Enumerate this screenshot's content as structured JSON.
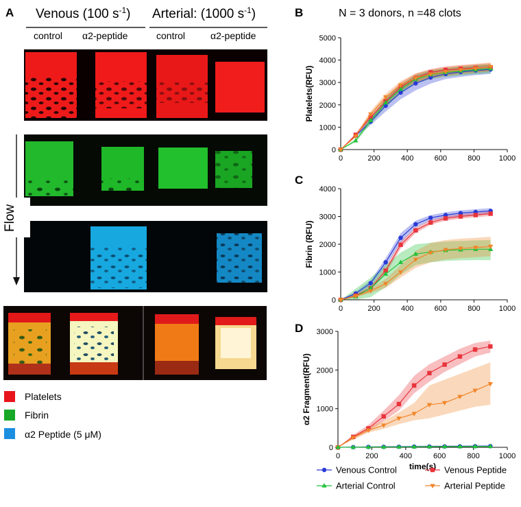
{
  "left": {
    "panel_label": "A",
    "venous_title_prefix": "Venous (100 s",
    "venous_title_sup": "-1",
    "venous_title_suffix": ")",
    "arterial_title_prefix": "Arterial: (1000 s",
    "arterial_title_sup": "-1",
    "arterial_title_suffix": ")",
    "columns": [
      "control",
      "α2-peptide",
      "control",
      "α2-peptide"
    ],
    "flow_label": "Flow",
    "legend": [
      {
        "label": "Platelets",
        "color": "#e8141c"
      },
      {
        "label": "Fibrin",
        "color": "#17a827"
      },
      {
        "label": "α2 Peptide (5 μM)",
        "color": "#1c8fe0"
      }
    ]
  },
  "header": {
    "panel_label": "B",
    "annotation": "N = 3 donors, n =48 clots"
  },
  "colors": {
    "venous_control": "#2a3bd6",
    "venous_peptide": "#e8343c",
    "arterial_control": "#23c23a",
    "arterial_peptide": "#f0862a"
  },
  "legend": {
    "items": [
      {
        "label": "Venous Control",
        "series": "venous_control",
        "marker": "circle"
      },
      {
        "label": "Venous Peptide",
        "series": "venous_peptide",
        "marker": "square"
      },
      {
        "label": "Arterial Control",
        "series": "arterial_control",
        "marker": "triangle-up"
      },
      {
        "label": "Arterial Peptide",
        "series": "arterial_peptide",
        "marker": "triangle-down"
      }
    ]
  },
  "chart_data": [
    {
      "panel": "B",
      "type": "line",
      "title": "",
      "xlabel": "",
      "ylabel": "Platelets(RFU)",
      "xlim": [
        0,
        1000
      ],
      "ylim": [
        0,
        5000
      ],
      "xticks": [
        0,
        200,
        400,
        600,
        800,
        1000
      ],
      "yticks": [
        0,
        1000,
        2000,
        3000,
        4000,
        5000
      ],
      "x": [
        0,
        90,
        180,
        270,
        360,
        450,
        540,
        630,
        720,
        810,
        900
      ],
      "series": [
        {
          "name": "Venous Control",
          "key": "venous_control",
          "values": [
            0,
            620,
            1250,
            1960,
            2550,
            2960,
            3220,
            3380,
            3470,
            3540,
            3580
          ],
          "band": [
            [
              0,
              0
            ],
            [
              560,
              680
            ],
            [
              1100,
              1400
            ],
            [
              1700,
              2250
            ],
            [
              2250,
              2900
            ],
            [
              2650,
              3300
            ],
            [
              2950,
              3500
            ],
            [
              3150,
              3600
            ],
            [
              3250,
              3680
            ],
            [
              3330,
              3740
            ],
            [
              3380,
              3790
            ]
          ]
        },
        {
          "name": "Venous Peptide",
          "key": "venous_peptide",
          "values": [
            0,
            660,
            1450,
            2150,
            2800,
            3200,
            3450,
            3560,
            3610,
            3650,
            3680
          ],
          "band": [
            [
              0,
              0
            ],
            [
              600,
              720
            ],
            [
              1300,
              1600
            ],
            [
              1950,
              2350
            ],
            [
              2600,
              3000
            ],
            [
              3000,
              3400
            ],
            [
              3250,
              3600
            ],
            [
              3350,
              3720
            ],
            [
              3420,
              3780
            ],
            [
              3460,
              3820
            ],
            [
              3500,
              3860
            ]
          ]
        },
        {
          "name": "Arterial Control",
          "key": "arterial_control",
          "values": [
            0,
            400,
            1300,
            2100,
            2700,
            3150,
            3350,
            3450,
            3520,
            3570,
            3620
          ],
          "band": [
            [
              0,
              0
            ],
            [
              330,
              470
            ],
            [
              1150,
              1450
            ],
            [
              1900,
              2300
            ],
            [
              2500,
              2900
            ],
            [
              2950,
              3350
            ],
            [
              3150,
              3550
            ],
            [
              3250,
              3650
            ],
            [
              3320,
              3720
            ],
            [
              3370,
              3770
            ],
            [
              3420,
              3820
            ]
          ]
        },
        {
          "name": "Arterial Peptide",
          "key": "arterial_peptide",
          "values": [
            0,
            600,
            1580,
            2350,
            2880,
            3200,
            3370,
            3480,
            3560,
            3630,
            3700
          ],
          "band": [
            [
              0,
              0
            ],
            [
              540,
              660
            ],
            [
              1450,
              1720
            ],
            [
              2200,
              2500
            ],
            [
              2700,
              3060
            ],
            [
              3000,
              3400
            ],
            [
              3170,
              3570
            ],
            [
              3280,
              3680
            ],
            [
              3360,
              3760
            ],
            [
              3430,
              3830
            ],
            [
              3500,
              3900
            ]
          ]
        }
      ]
    },
    {
      "panel": "C",
      "type": "line",
      "title": "",
      "xlabel": "",
      "ylabel": "Fibrin (RFU)",
      "xlim": [
        0,
        1000
      ],
      "ylim": [
        0,
        4000
      ],
      "xticks": [
        0,
        200,
        400,
        600,
        800,
        1000
      ],
      "yticks": [
        0,
        1000,
        2000,
        3000,
        4000
      ],
      "x": [
        0,
        90,
        180,
        270,
        360,
        450,
        540,
        630,
        720,
        810,
        900
      ],
      "series": [
        {
          "name": "Venous Control",
          "key": "venous_control",
          "values": [
            0,
            230,
            600,
            1350,
            2230,
            2720,
            2950,
            3050,
            3120,
            3160,
            3200
          ],
          "band": [
            [
              0,
              0
            ],
            [
              170,
              290
            ],
            [
              500,
              700
            ],
            [
              1200,
              1500
            ],
            [
              2050,
              2400
            ],
            [
              2600,
              2850
            ],
            [
              2850,
              3050
            ],
            [
              2950,
              3150
            ],
            [
              3020,
              3220
            ],
            [
              3060,
              3260
            ],
            [
              3100,
              3300
            ]
          ]
        },
        {
          "name": "Venous Peptide",
          "key": "venous_peptide",
          "values": [
            0,
            150,
            420,
            1050,
            1980,
            2500,
            2780,
            2930,
            3000,
            3050,
            3100
          ],
          "band": [
            [
              0,
              0
            ],
            [
              110,
              190
            ],
            [
              340,
              500
            ],
            [
              920,
              1180
            ],
            [
              1850,
              2100
            ],
            [
              2400,
              2600
            ],
            [
              2700,
              2870
            ],
            [
              2850,
              3010
            ],
            [
              2920,
              3080
            ],
            [
              2970,
              3130
            ],
            [
              3020,
              3180
            ]
          ]
        },
        {
          "name": "Arterial Control",
          "key": "arterial_control",
          "values": [
            0,
            120,
            420,
            930,
            1350,
            1650,
            1720,
            1780,
            1800,
            1820,
            1820
          ],
          "band": [
            [
              0,
              0
            ],
            [
              0,
              400
            ],
            [
              100,
              800
            ],
            [
              450,
              1250
            ],
            [
              900,
              1700
            ],
            [
              1250,
              2000
            ],
            [
              1350,
              2050
            ],
            [
              1400,
              2100
            ],
            [
              1420,
              2120
            ],
            [
              1430,
              2140
            ],
            [
              1430,
              2150
            ]
          ]
        },
        {
          "name": "Arterial Peptide",
          "key": "arterial_peptide",
          "values": [
            0,
            130,
            320,
            580,
            1000,
            1450,
            1700,
            1800,
            1850,
            1880,
            1920
          ],
          "band": [
            [
              0,
              0
            ],
            [
              80,
              180
            ],
            [
              250,
              400
            ],
            [
              430,
              750
            ],
            [
              800,
              1250
            ],
            [
              1150,
              1750
            ],
            [
              1350,
              2050
            ],
            [
              1450,
              2150
            ],
            [
              1500,
              2200
            ],
            [
              1530,
              2230
            ],
            [
              1570,
              2270
            ]
          ]
        }
      ]
    },
    {
      "panel": "D",
      "type": "line",
      "title": "",
      "xlabel": "time(s)",
      "ylabel": "α2 Fragment(RFU)",
      "xlim": [
        0,
        1000
      ],
      "ylim": [
        0,
        3000
      ],
      "xticks": [
        0,
        200,
        400,
        600,
        800,
        1000
      ],
      "yticks": [
        0,
        1000,
        2000,
        3000
      ],
      "x": [
        0,
        90,
        180,
        270,
        360,
        450,
        540,
        630,
        720,
        810,
        900
      ],
      "series": [
        {
          "name": "Venous Control",
          "key": "venous_control",
          "values": [
            0,
            5,
            10,
            12,
            15,
            18,
            20,
            22,
            25,
            28,
            30
          ],
          "band": [
            [
              0,
              0
            ],
            [
              0,
              20
            ],
            [
              0,
              25
            ],
            [
              0,
              30
            ],
            [
              0,
              35
            ],
            [
              0,
              40
            ],
            [
              0,
              45
            ],
            [
              0,
              48
            ],
            [
              0,
              50
            ],
            [
              0,
              55
            ],
            [
              0,
              60
            ]
          ]
        },
        {
          "name": "Venous Peptide",
          "key": "venous_peptide",
          "values": [
            0,
            270,
            490,
            800,
            1120,
            1600,
            1920,
            2140,
            2350,
            2530,
            2610
          ],
          "band": [
            [
              0,
              0
            ],
            [
              220,
              320
            ],
            [
              420,
              580
            ],
            [
              680,
              950
            ],
            [
              950,
              1350
            ],
            [
              1400,
              1850
            ],
            [
              1700,
              2150
            ],
            [
              1950,
              2350
            ],
            [
              2150,
              2550
            ],
            [
              2350,
              2700
            ],
            [
              2450,
              2760
            ]
          ]
        },
        {
          "name": "Arterial Peptide",
          "key": "arterial_peptide",
          "values": [
            0,
            250,
            440,
            570,
            750,
            870,
            1100,
            1150,
            1310,
            1470,
            1640
          ],
          "band": [
            [
              0,
              0
            ],
            [
              200,
              300
            ],
            [
              380,
              520
            ],
            [
              480,
              680
            ],
            [
              600,
              900
            ],
            [
              700,
              1150
            ],
            [
              750,
              1600
            ],
            [
              850,
              1750
            ],
            [
              950,
              1900
            ],
            [
              1050,
              2050
            ],
            [
              1100,
              2200
            ]
          ]
        },
        {
          "name": "Arterial Control",
          "key": "arterial_control",
          "values": [
            0,
            5,
            8,
            10,
            12,
            15,
            18,
            20,
            22,
            24,
            25
          ],
          "band": [
            [
              0,
              0
            ],
            [
              0,
              15
            ],
            [
              0,
              18
            ],
            [
              0,
              20
            ],
            [
              0,
              22
            ],
            [
              0,
              25
            ],
            [
              0,
              28
            ],
            [
              0,
              30
            ],
            [
              0,
              32
            ],
            [
              0,
              34
            ],
            [
              0,
              36
            ]
          ]
        }
      ]
    }
  ]
}
